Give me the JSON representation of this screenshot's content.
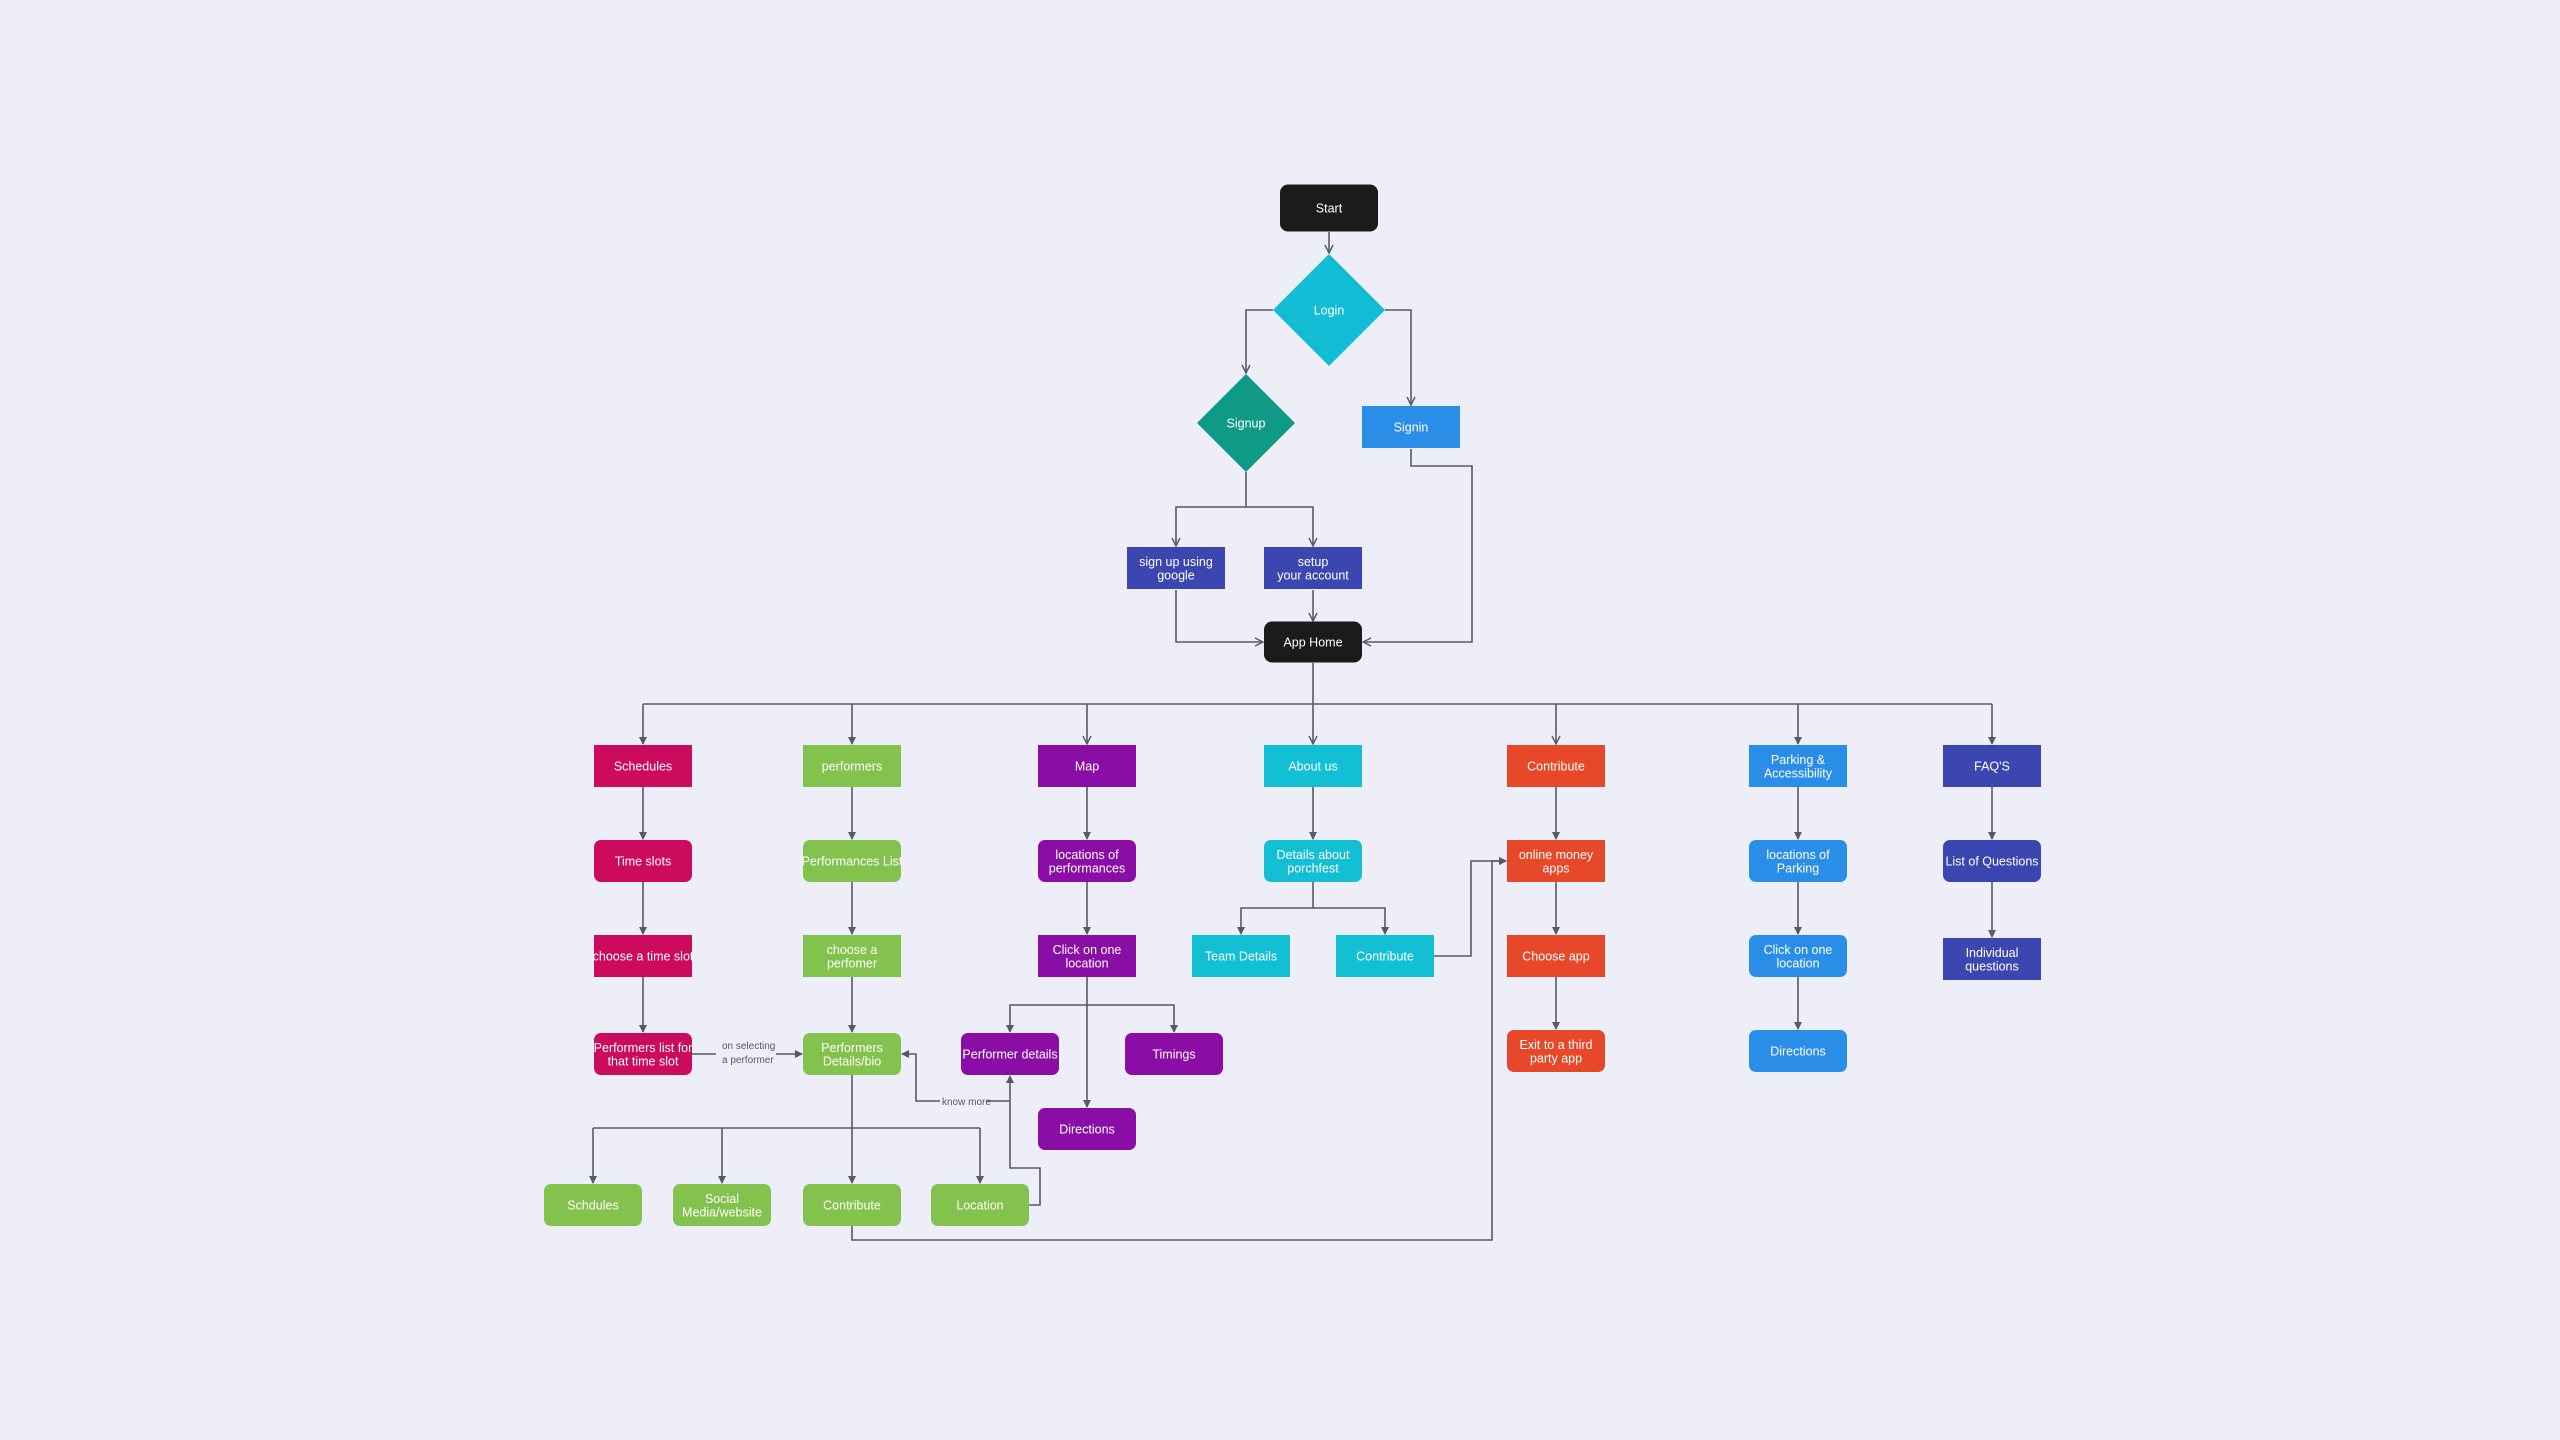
{
  "colors": {
    "background": "#eeeef9",
    "terminal": "#1b1b1d",
    "login": "#12bcd4",
    "signup": "#0e9a85",
    "signin": "#2a8ee8",
    "indigo": "#3c46b0",
    "schedules": "#cc0a5e",
    "performers": "#84c24e",
    "map": "#8a0ea6",
    "about": "#13bfd4",
    "contribute": "#e8482a",
    "parking": "#2a8ee8",
    "faq": "#3c46b0",
    "edge": "#555a66"
  },
  "nodes": {
    "start": {
      "label": [
        "Start"
      ],
      "shape": "terminal"
    },
    "login": {
      "label": [
        "Login"
      ],
      "shape": "decision"
    },
    "signup": {
      "label": [
        "Signup"
      ],
      "shape": "decision"
    },
    "signin": {
      "label": [
        "Signin"
      ],
      "shape": "process"
    },
    "google": {
      "label": [
        "sign up using",
        "google"
      ],
      "shape": "process"
    },
    "setup": {
      "label": [
        "setup",
        "your account"
      ],
      "shape": "process"
    },
    "home": {
      "label": [
        "App Home"
      ],
      "shape": "terminal"
    },
    "schedules": {
      "label": [
        "Schedules"
      ],
      "shape": "process"
    },
    "timeslots": {
      "label": [
        "Time slots"
      ],
      "shape": "rounded"
    },
    "chooseslot": {
      "label": [
        "choose a time slot"
      ],
      "shape": "process"
    },
    "perflist": {
      "label": [
        "Performers list for",
        "that time slot"
      ],
      "shape": "rounded"
    },
    "performers": {
      "label": [
        "performers"
      ],
      "shape": "process"
    },
    "performanceslist": {
      "label": [
        "Performances List"
      ],
      "shape": "rounded"
    },
    "chooseperf": {
      "label": [
        "choose a",
        "perfomer"
      ],
      "shape": "process"
    },
    "perfdetails": {
      "label": [
        "Performers",
        "Details/bio"
      ],
      "shape": "rounded"
    },
    "schdules": {
      "label": [
        "Schdules"
      ],
      "shape": "rounded"
    },
    "social": {
      "label": [
        "Social",
        "Media/website"
      ],
      "shape": "rounded"
    },
    "contribute2": {
      "label": [
        "Contribute"
      ],
      "shape": "rounded"
    },
    "location": {
      "label": [
        "Location"
      ],
      "shape": "rounded"
    },
    "map": {
      "label": [
        "Map"
      ],
      "shape": "process"
    },
    "locperf": {
      "label": [
        "locations of",
        "performances"
      ],
      "shape": "rounded"
    },
    "clickloc": {
      "label": [
        "Click on one",
        "location"
      ],
      "shape": "process"
    },
    "performerdetails": {
      "label": [
        "Performer details"
      ],
      "shape": "rounded"
    },
    "timings": {
      "label": [
        "Timings"
      ],
      "shape": "rounded"
    },
    "mapdirections": {
      "label": [
        "Directions"
      ],
      "shape": "rounded"
    },
    "about": {
      "label": [
        "About us"
      ],
      "shape": "process"
    },
    "aboutdetails": {
      "label": [
        "Details about",
        "porchfest"
      ],
      "shape": "rounded"
    },
    "team": {
      "label": [
        "Team Details"
      ],
      "shape": "process"
    },
    "aboutcontribute": {
      "label": [
        "Contribute"
      ],
      "shape": "process"
    },
    "contribute": {
      "label": [
        "Contribute"
      ],
      "shape": "process"
    },
    "moneyapps": {
      "label": [
        "online money",
        "apps"
      ],
      "shape": "process"
    },
    "chooseapp": {
      "label": [
        "Choose app"
      ],
      "shape": "process"
    },
    "exitapp": {
      "label": [
        "Exit to a third",
        "party app"
      ],
      "shape": "rounded"
    },
    "parking": {
      "label": [
        "Parking &",
        "Accessibility"
      ],
      "shape": "process"
    },
    "locparking": {
      "label": [
        "locations of",
        "Parking"
      ],
      "shape": "rounded"
    },
    "clickparking": {
      "label": [
        "Click on one",
        "location"
      ],
      "shape": "rounded"
    },
    "parkdirections": {
      "label": [
        "Directions"
      ],
      "shape": "rounded"
    },
    "faq": {
      "label": [
        "FAQ'S"
      ],
      "shape": "process"
    },
    "questions": {
      "label": [
        "List of Questions"
      ],
      "shape": "rounded"
    },
    "individual": {
      "label": [
        "Individual",
        "questions"
      ],
      "shape": "process"
    }
  },
  "edge_labels": {
    "on_selecting": [
      "on selecting",
      "a performer"
    ],
    "know_more": "know more"
  }
}
